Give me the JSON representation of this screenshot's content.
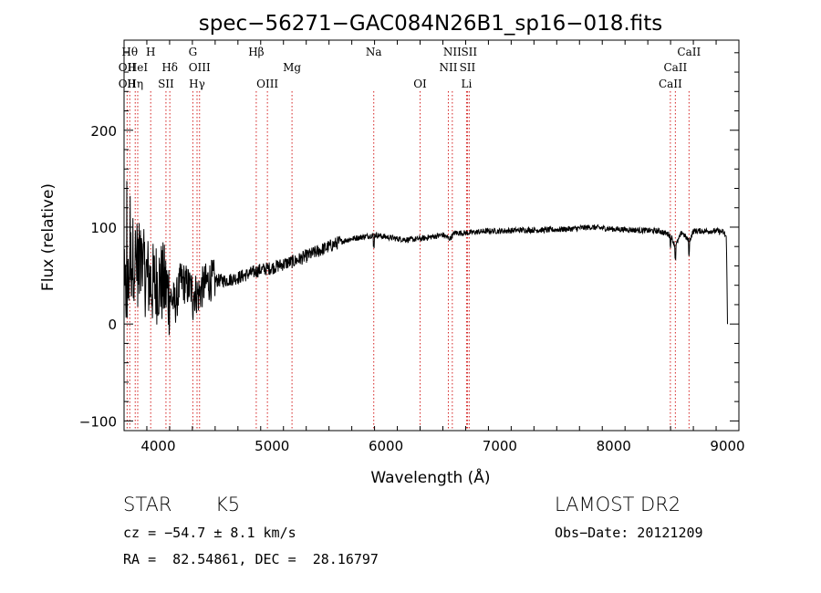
{
  "chart_data": {
    "type": "line",
    "title": "spec−56271−GAC084N26B1_sp16−018.fits",
    "xlabel": "Wavelength (Å)",
    "ylabel": "Flux (relative)",
    "xlim": [
      3700,
      9100
    ],
    "ylim": [
      -110,
      293
    ],
    "x_ticks": [
      4000,
      5000,
      6000,
      7000,
      8000,
      9000
    ],
    "x_tick_labels": [
      "4000",
      "5000",
      "6000",
      "7000",
      "8000",
      "9000"
    ],
    "y_ticks": [
      -100,
      0,
      100,
      200
    ],
    "y_tick_labels": [
      "−100",
      "0",
      "100",
      "200"
    ],
    "grid": false,
    "series": [
      {
        "x": [
          3700,
          3750,
          3780,
          3800,
          3830,
          3860,
          3900,
          3950,
          4000,
          4050,
          4100,
          4150,
          4200,
          4250,
          4300,
          4350,
          4400,
          4450,
          4500,
          4600,
          4700,
          4800,
          4900,
          5000,
          5100,
          5200,
          5300,
          5400,
          5500,
          5600,
          5700,
          5800,
          5900,
          6000,
          6100,
          6200,
          6300,
          6400,
          6500,
          6563,
          6600,
          6700,
          6800,
          6900,
          7000,
          7200,
          7400,
          7600,
          7800,
          8000,
          8200,
          8400,
          8498,
          8542,
          8600,
          8662,
          8700,
          8800,
          8900,
          8960,
          8990,
          9000
        ],
        "y": [
          20,
          60,
          70,
          65,
          60,
          55,
          50,
          40,
          45,
          40,
          30,
          20,
          45,
          40,
          35,
          30,
          40,
          45,
          45,
          45,
          48,
          52,
          56,
          58,
          62,
          65,
          70,
          75,
          80,
          85,
          88,
          90,
          92,
          90,
          88,
          87,
          88,
          90,
          92,
          88,
          94,
          94,
          95,
          96,
          96,
          97,
          97,
          98,
          100,
          98,
          97,
          96,
          92,
          80,
          95,
          85,
          96,
          96,
          96,
          95,
          90,
          0
        ]
      }
    ],
    "noise_bands": [
      {
        "x0": 3700,
        "x1": 4100,
        "amplitude": 45
      },
      {
        "x0": 4100,
        "x1": 4500,
        "amplitude": 22
      },
      {
        "x0": 4500,
        "x1": 5600,
        "amplitude": 7
      },
      {
        "x0": 5600,
        "x1": 9000,
        "amplitude": 3
      }
    ],
    "absorption_lines": [
      {
        "wavelength": 3727,
        "labels": [
          "OII",
          "OII"
        ],
        "tiers": [
          1,
          2
        ]
      },
      {
        "wavelength": 3750,
        "labels": [
          "Hθ"
        ],
        "tiers": [
          0
        ]
      },
      {
        "wavelength": 3798,
        "labels": [
          "Hη"
        ],
        "tiers": [
          2
        ]
      },
      {
        "wavelength": 3820,
        "labels": [
          "HeI"
        ],
        "tiers": [
          1
        ]
      },
      {
        "wavelength": 3934,
        "labels": [
          "H"
        ],
        "tiers": [
          0
        ]
      },
      {
        "wavelength": 4068,
        "labels": [
          "SII"
        ],
        "tiers": [
          2
        ]
      },
      {
        "wavelength": 4102,
        "labels": [
          "Hδ"
        ],
        "tiers": [
          1
        ]
      },
      {
        "wavelength": 4304,
        "labels": [
          "G"
        ],
        "tiers": [
          0
        ]
      },
      {
        "wavelength": 4341,
        "labels": [
          "Hγ"
        ],
        "tiers": [
          2
        ]
      },
      {
        "wavelength": 4363,
        "labels": [
          "OIII"
        ],
        "tiers": [
          1
        ]
      },
      {
        "wavelength": 4861,
        "labels": [
          "Hβ"
        ],
        "tiers": [
          0
        ]
      },
      {
        "wavelength": 4959,
        "labels": [
          "OIII"
        ],
        "tiers": [
          2
        ]
      },
      {
        "wavelength": 5175,
        "labels": [
          "Mg"
        ],
        "tiers": [
          1
        ]
      },
      {
        "wavelength": 5893,
        "labels": [
          "Na"
        ],
        "tiers": [
          0
        ]
      },
      {
        "wavelength": 6300,
        "labels": [
          "OI"
        ],
        "tiers": [
          2
        ]
      },
      {
        "wavelength": 6548,
        "labels": [
          "NII"
        ],
        "tiers": [
          1
        ]
      },
      {
        "wavelength": 6583,
        "labels": [
          "NII"
        ],
        "tiers": [
          0
        ]
      },
      {
        "wavelength": 6708,
        "labels": [
          "Li"
        ],
        "tiers": [
          2
        ]
      },
      {
        "wavelength": 6716,
        "labels": [
          "SII"
        ],
        "tiers": [
          1
        ]
      },
      {
        "wavelength": 6731,
        "labels": [
          "SII"
        ],
        "tiers": [
          0
        ]
      },
      {
        "wavelength": 8498,
        "labels": [
          "CaII"
        ],
        "tiers": [
          2
        ]
      },
      {
        "wavelength": 8542,
        "labels": [
          "CaII"
        ],
        "tiers": [
          1
        ]
      },
      {
        "wavelength": 8662,
        "labels": [
          "CaII"
        ],
        "tiers": [
          0
        ]
      }
    ],
    "line_color": "#000000",
    "marker_color": "#d42020"
  },
  "info": {
    "object_class": "STAR",
    "subclass": "K5",
    "redshift": "cz = −54.7 ± 8.1 km/s",
    "coords": "RA =  82.54861, DEC =  28.16797",
    "survey": "LAMOST DR2",
    "obs_date": "Obs−Date: 20121209"
  }
}
